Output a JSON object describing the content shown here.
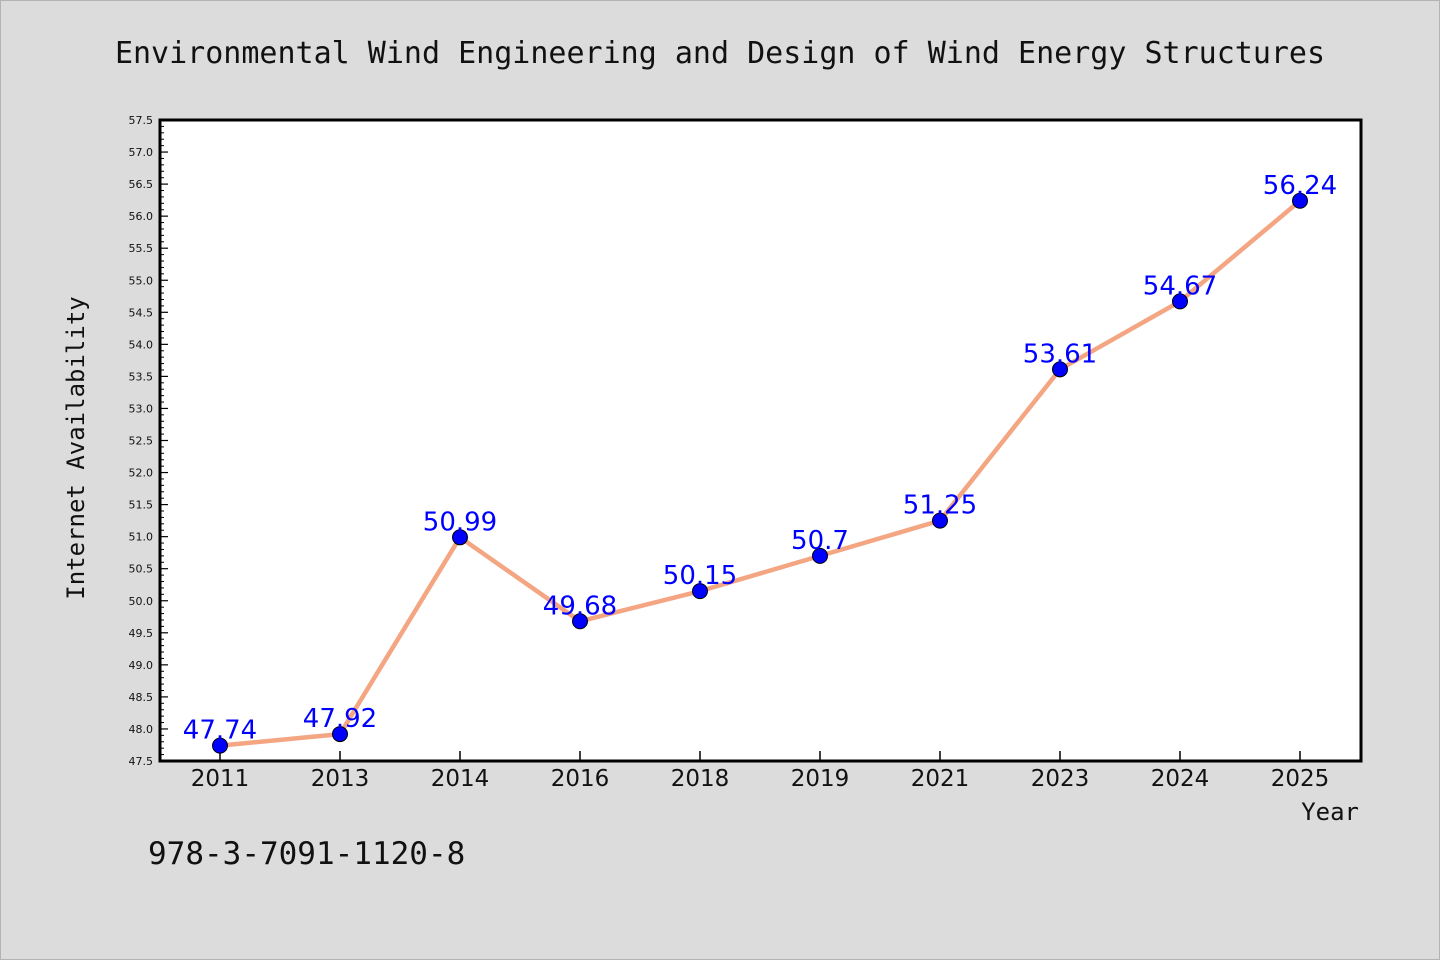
{
  "chart_data": {
    "type": "line",
    "title": "Environmental Wind Engineering and Design of Wind Energy Structures",
    "xlabel": "Year",
    "ylabel": "Internet Availability",
    "categories": [
      "2011",
      "2013",
      "2014",
      "2016",
      "2018",
      "2019",
      "2021",
      "2023",
      "2024",
      "2025"
    ],
    "series": [
      {
        "values": [
          47.74,
          47.92,
          50.99,
          49.68,
          50.15,
          50.7,
          51.25,
          53.61,
          54.67,
          56.24
        ],
        "labels": [
          "47.74",
          "47.92",
          "50.99",
          "49.68",
          "50.15",
          "50.7",
          "51.25",
          "53.61",
          "54.67",
          "56.24"
        ],
        "line_color": "#f4a582",
        "marker_color": "#0000ff"
      }
    ],
    "ylim": [
      47.5,
      57.5
    ],
    "yticks": [
      "47.5",
      "48.0",
      "48.5",
      "49.0",
      "49.5",
      "50.0",
      "50.5",
      "51.0",
      "51.5",
      "52.0",
      "52.5",
      "53.0",
      "53.5",
      "54.0",
      "54.5",
      "55.0",
      "55.5",
      "56.0",
      "56.5",
      "57.0",
      "57.5"
    ],
    "grid": false,
    "legend": "none"
  },
  "footer": {
    "isbn": "978-3-7091-1120-8"
  },
  "colors": {
    "background": "#dcdcdc",
    "plot_background": "#ffffff",
    "line": "#f4a582",
    "marker": "#0000ff",
    "data_label": "#0000ff"
  }
}
